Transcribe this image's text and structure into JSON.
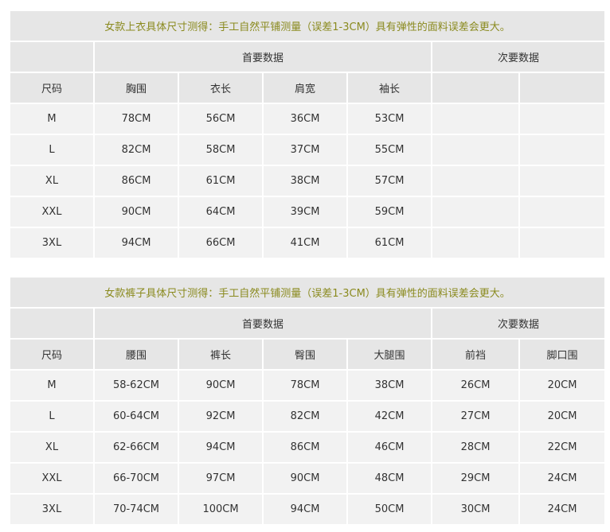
{
  "tables": [
    {
      "title": "女款上衣具体尺寸测得：手工自然平铺测量（误差1-3CM）具有弹性的面料误差会更大。",
      "primary": "首要数据",
      "secondary": "次要数据",
      "headers": [
        "尺码",
        "胸围",
        "衣长",
        "肩宽",
        "袖长",
        "",
        ""
      ],
      "rows": [
        [
          "M",
          "78CM",
          "56CM",
          "36CM",
          "53CM",
          "",
          ""
        ],
        [
          "L",
          "82CM",
          "58CM",
          "37CM",
          "55CM",
          "",
          ""
        ],
        [
          "XL",
          "86CM",
          "61CM",
          "38CM",
          "57CM",
          "",
          ""
        ],
        [
          "XXL",
          "90CM",
          "64CM",
          "39CM",
          "59CM",
          "",
          ""
        ],
        [
          "3XL",
          "94CM",
          "66CM",
          "41CM",
          "61CM",
          "",
          ""
        ]
      ]
    },
    {
      "title": "女款裤子具体尺寸测得：手工自然平铺测量（误差1-3CM）具有弹性的面料误差会更大。",
      "primary": "首要数据",
      "secondary": "次要数据",
      "headers": [
        "尺码",
        "腰围",
        "裤长",
        "臀围",
        "大腿围",
        "前裆",
        "脚口围"
      ],
      "rows": [
        [
          "M",
          "58-62CM",
          "90CM",
          "78CM",
          "38CM",
          "26CM",
          "20CM"
        ],
        [
          "L",
          "60-64CM",
          "92CM",
          "82CM",
          "42CM",
          "27CM",
          "20CM"
        ],
        [
          "XL",
          "62-66CM",
          "94CM",
          "86CM",
          "46CM",
          "28CM",
          "22CM"
        ],
        [
          "XXL",
          "66-70CM",
          "97CM",
          "90CM",
          "48CM",
          "29CM",
          "24CM"
        ],
        [
          "3XL",
          "70-74CM",
          "100CM",
          "94CM",
          "50CM",
          "30CM",
          "24CM"
        ]
      ]
    }
  ]
}
